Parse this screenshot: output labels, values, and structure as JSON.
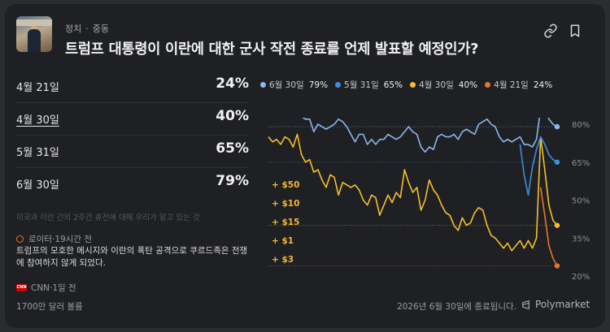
{
  "header": {
    "category": "정치",
    "subcategory": "중동",
    "title": "트럼프 대통령이 이란에 대한 군사 작전 종료를 언제 발표할 예정인가?"
  },
  "outcomes": [
    {
      "date": "4월 21일",
      "pct": "24%"
    },
    {
      "date": "4월 30일",
      "pct": "40%"
    },
    {
      "date": "5월 31일",
      "pct": "65%"
    },
    {
      "date": "6월 30일",
      "pct": "79%"
    }
  ],
  "faded_text": "미국과 이란 간의 2주간 휴전에 대해 우리가 알고 있는 것",
  "news": [
    {
      "source": "로이터·19시간 전",
      "text": "트럼프의 모호한 메시지와 이란의 폭탄 공격으로 쿠르드족은 전쟁에 참여하지 않게 되었다."
    },
    {
      "source": "CNN·1일 전"
    }
  ],
  "cnn_logo": "CNN",
  "footer": {
    "volume": "1700만 달러 볼륨",
    "end_note": "2026년 6월 30일에 종료됩니다.",
    "brand": "Polymarket"
  },
  "bets": [
    "+ $50",
    "+ $10",
    "+ $15",
    "+ $1",
    "+ $3"
  ],
  "colors": {
    "jun30": "#8ab8f0",
    "may31": "#3b8fe0",
    "apr30": "#f4c02c",
    "apr21": "#e8762f"
  },
  "chart_data": {
    "type": "line",
    "y_ticks": [
      "80%",
      "65%",
      "50%",
      "35%",
      "20%"
    ],
    "ylim": [
      20,
      80
    ],
    "legend": "top",
    "series": [
      {
        "name": "6월 30일",
        "current": "79%",
        "values": [
          85,
          86,
          85,
          85,
          87,
          86,
          85,
          86,
          83,
          82,
          82,
          77,
          80,
          79,
          78,
          79,
          80,
          82,
          81,
          79,
          76,
          73,
          76,
          76,
          72,
          74,
          72,
          74,
          74,
          76,
          75,
          74,
          75,
          77,
          79,
          77,
          76,
          71,
          69,
          71,
          70,
          75,
          76,
          75,
          75,
          76,
          74,
          77,
          78,
          77,
          76,
          80,
          81,
          82,
          80,
          79,
          75,
          73,
          74,
          73,
          74,
          75,
          72,
          72,
          71,
          74,
          86,
          87,
          82,
          80,
          79
        ]
      },
      {
        "name": "5월 31일",
        "current": "65%",
        "values": [
          null,
          null,
          null,
          null,
          null,
          null,
          null,
          null,
          null,
          null,
          null,
          null,
          null,
          null,
          null,
          null,
          null,
          null,
          null,
          null,
          null,
          null,
          null,
          null,
          null,
          null,
          null,
          null,
          null,
          null,
          null,
          null,
          null,
          null,
          null,
          null,
          null,
          null,
          null,
          null,
          null,
          null,
          null,
          null,
          null,
          null,
          null,
          null,
          null,
          null,
          null,
          null,
          null,
          null,
          null,
          null,
          null,
          null,
          null,
          null,
          null,
          72,
          60,
          52,
          63,
          70,
          75,
          72,
          68,
          66,
          65
        ]
      },
      {
        "name": "4월 30일",
        "current": "40%",
        "values": [
          75,
          73,
          74,
          72,
          75,
          74,
          71,
          76,
          68,
          65,
          66,
          61,
          62,
          58,
          55,
          60,
          59,
          52,
          57,
          56,
          55,
          56,
          54,
          50,
          48,
          52,
          51,
          44,
          48,
          52,
          49,
          53,
          51,
          62,
          57,
          53,
          55,
          46,
          50,
          58,
          54,
          52,
          48,
          45,
          44,
          40,
          38,
          43,
          40,
          41,
          45,
          47,
          46,
          40,
          36,
          35,
          33,
          31,
          33,
          30,
          32,
          34,
          31,
          34,
          31,
          35,
          75,
          62,
          48,
          42,
          40
        ]
      },
      {
        "name": "4월 21일",
        "current": "24%",
        "values": [
          null,
          null,
          null,
          null,
          null,
          null,
          null,
          null,
          null,
          null,
          null,
          null,
          null,
          null,
          null,
          null,
          null,
          null,
          null,
          null,
          null,
          null,
          null,
          null,
          null,
          null,
          null,
          null,
          null,
          null,
          null,
          null,
          null,
          null,
          null,
          null,
          null,
          null,
          null,
          null,
          null,
          null,
          null,
          null,
          null,
          null,
          null,
          null,
          null,
          null,
          null,
          null,
          null,
          null,
          null,
          null,
          null,
          null,
          null,
          null,
          null,
          null,
          null,
          null,
          null,
          null,
          55,
          44,
          32,
          27,
          24
        ]
      }
    ]
  }
}
